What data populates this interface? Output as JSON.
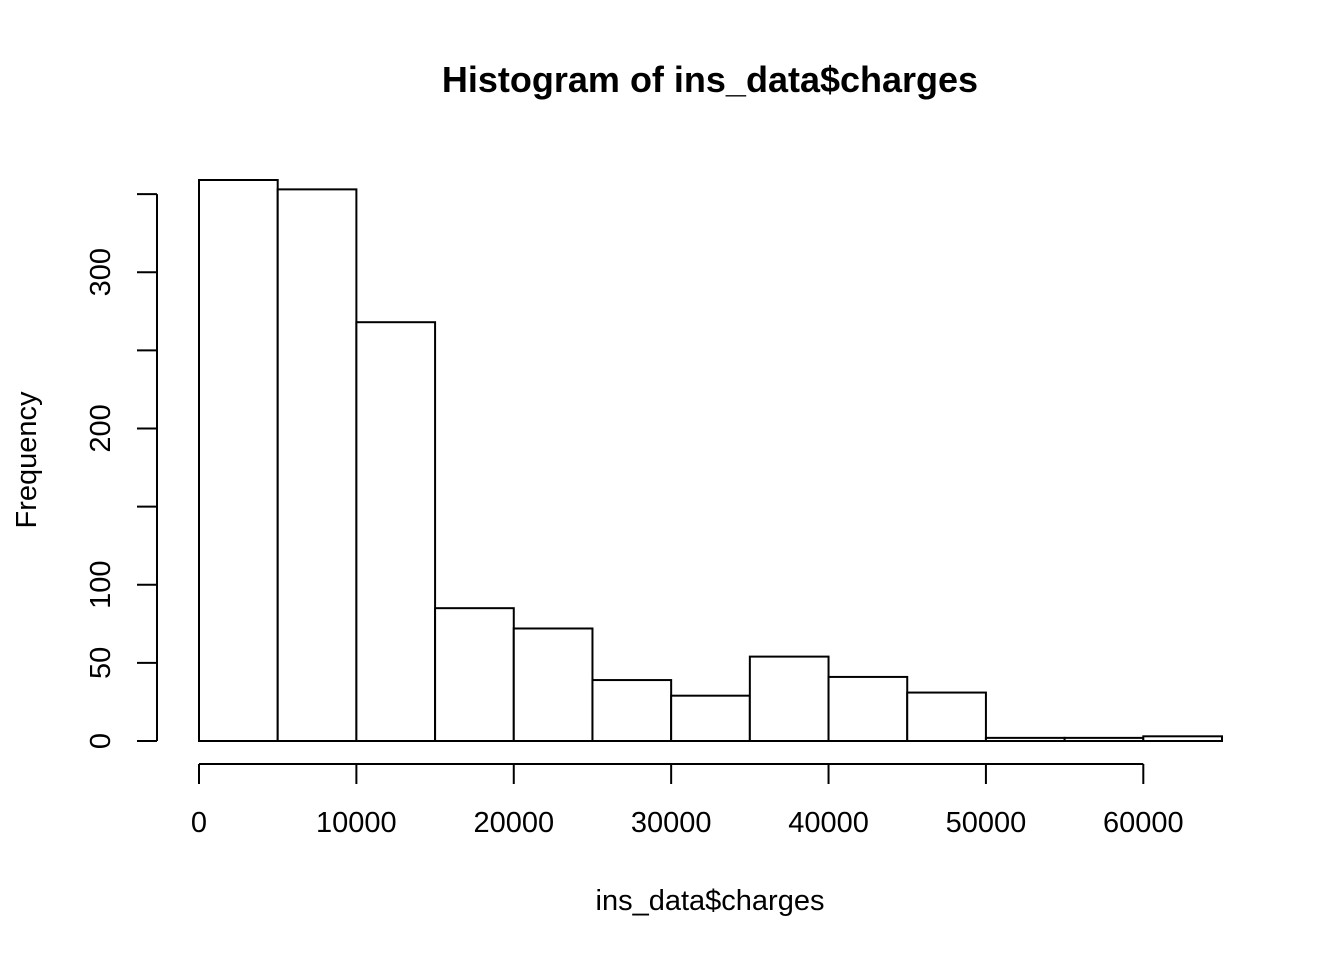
{
  "chart_data": {
    "type": "bar",
    "title": "Histogram of ins_data$charges",
    "xlabel": "ins_data$charges",
    "ylabel": "Frequency",
    "bin_edges": [
      0,
      5000,
      10000,
      15000,
      20000,
      25000,
      30000,
      35000,
      40000,
      45000,
      50000,
      55000,
      60000,
      65000
    ],
    "values": [
      359,
      353,
      268,
      85,
      72,
      39,
      29,
      54,
      41,
      31,
      2,
      2,
      3
    ],
    "x_ticks": [
      0,
      10000,
      20000,
      30000,
      40000,
      50000,
      60000
    ],
    "x_tick_labels": [
      "0",
      "10000",
      "20000",
      "30000",
      "40000",
      "50000",
      "60000"
    ],
    "y_ticks": [
      0,
      50,
      100,
      150,
      200,
      250,
      300,
      350
    ],
    "y_tick_labels": [
      "0",
      "50",
      "100",
      "",
      "200",
      "",
      "300",
      ""
    ],
    "xlim": [
      0,
      65000
    ],
    "ylim": [
      0,
      359
    ],
    "grid": false,
    "bar_fill": "#ffffff",
    "bar_stroke": "#000000"
  }
}
